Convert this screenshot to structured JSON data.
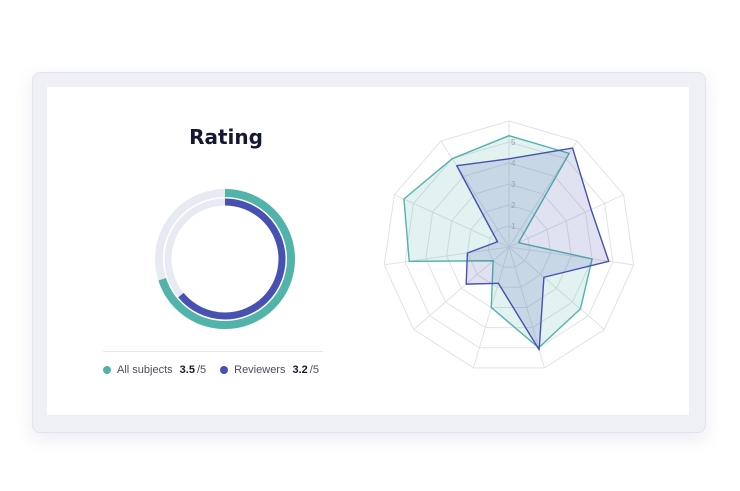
{
  "title": "Rating",
  "legend": {
    "all_subjects": {
      "label": "All subjects",
      "value": "3.5",
      "max": "/5"
    },
    "reviewers": {
      "label": "Reviewers",
      "value": "3.2",
      "max": "/5"
    }
  },
  "colors": {
    "all_subjects": "#52b3ab",
    "reviewers": "#4651b2",
    "track": "#e7eaf3",
    "grid": "#e2e2e6"
  },
  "chart_data": [
    {
      "type": "donut",
      "title": "Rating",
      "max": 5,
      "series": [
        {
          "name": "All subjects",
          "value": 3.5
        },
        {
          "name": "Reviewers",
          "value": 3.2
        }
      ]
    },
    {
      "type": "radar",
      "axes": 11,
      "rmax": 6,
      "tick_labels": [
        "1",
        "2",
        "3",
        "4",
        "5"
      ],
      "series": [
        {
          "name": "All subjects",
          "values": [
            5.3,
            5.3,
            0.5,
            4.0,
            4.5,
            5.0,
            3.0,
            1.0,
            4.8,
            5.5,
            5.0
          ]
        },
        {
          "name": "Reviewers",
          "values": [
            4.2,
            5.6,
            4.3,
            4.8,
            2.2,
            5.1,
            1.8,
            2.7,
            2.0,
            0.6,
            4.6
          ]
        }
      ]
    }
  ]
}
